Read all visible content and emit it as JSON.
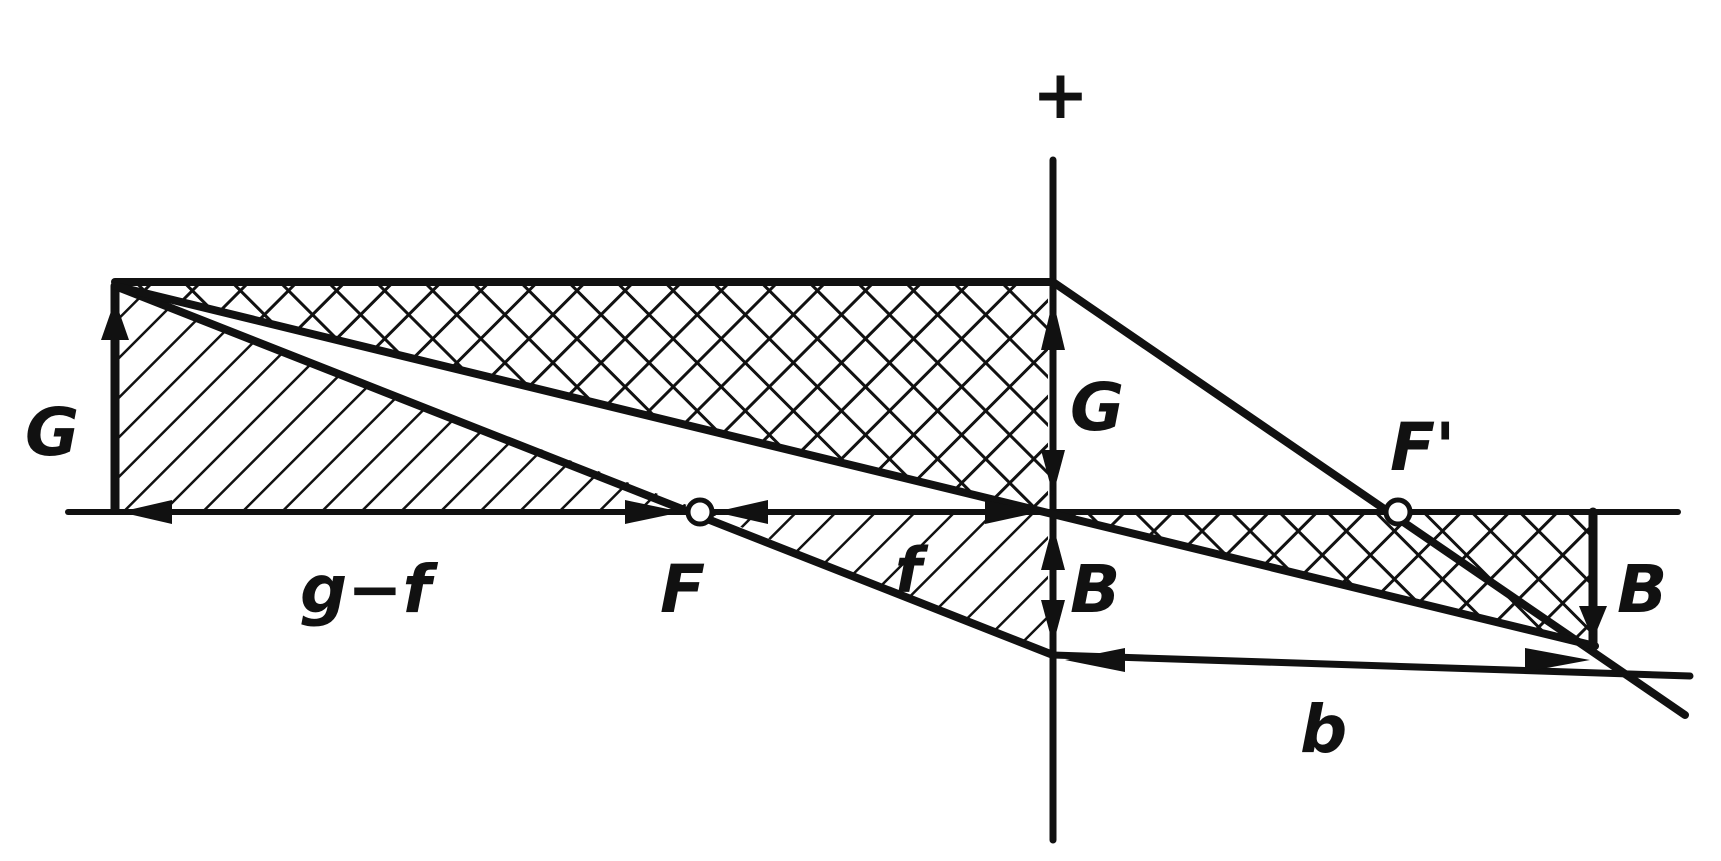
{
  "diagram": {
    "labels": {
      "plus": "+",
      "object_left": "G",
      "object_right": "G",
      "focal_front": "F",
      "focal_back": "F'",
      "image_left": "B",
      "image_right": "B",
      "g_minus_f": "g−f",
      "f": "f",
      "b": "b"
    }
  }
}
